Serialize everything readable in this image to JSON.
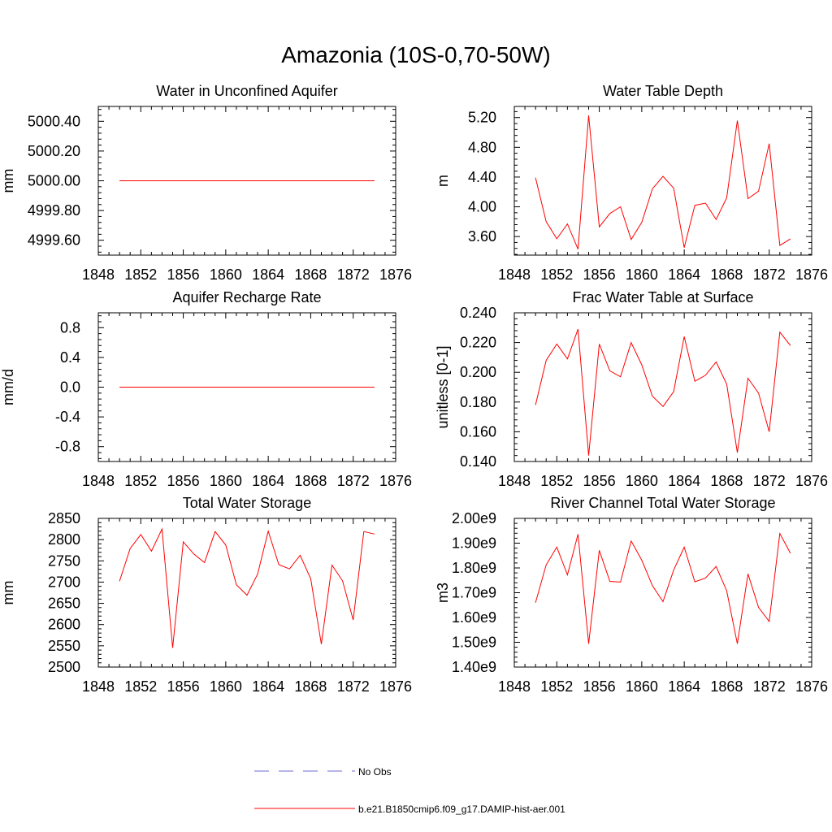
{
  "page_title": "Amazonia (10S-0,70-50W)",
  "chart_data": [
    {
      "type": "line",
      "title": "Water in Unconfined Aquifer",
      "ylabel": "mm",
      "xlim": [
        1848,
        1876
      ],
      "ylim": [
        4999.5,
        5000.5
      ],
      "xticks": [
        1848,
        1852,
        1856,
        1860,
        1864,
        1868,
        1872,
        1876
      ],
      "yticks": [
        4999.6,
        4999.8,
        5000.0,
        5000.2,
        5000.4
      ],
      "ytick_labels": [
        "4999.60",
        "4999.80",
        "5000.00",
        "5000.20",
        "5000.40"
      ],
      "x": [
        1850,
        1851,
        1852,
        1853,
        1854,
        1855,
        1856,
        1857,
        1858,
        1859,
        1860,
        1861,
        1862,
        1863,
        1864,
        1865,
        1866,
        1867,
        1868,
        1869,
        1870,
        1871,
        1872,
        1873,
        1874
      ],
      "series": [
        {
          "name": "b.e21.B1850cmip6.f09_g17.DAMIP-hist-aer.001",
          "values": [
            5000,
            5000,
            5000,
            5000,
            5000,
            5000,
            5000,
            5000,
            5000,
            5000,
            5000,
            5000,
            5000,
            5000,
            5000,
            5000,
            5000,
            5000,
            5000,
            5000,
            5000,
            5000,
            5000,
            5000,
            5000
          ]
        }
      ]
    },
    {
      "type": "line",
      "title": "Water Table Depth",
      "ylabel": "m",
      "xlim": [
        1848,
        1876
      ],
      "ylim": [
        3.35,
        5.35
      ],
      "xticks": [
        1848,
        1852,
        1856,
        1860,
        1864,
        1868,
        1872,
        1876
      ],
      "yticks": [
        3.6,
        4.0,
        4.4,
        4.8,
        5.2
      ],
      "ytick_labels": [
        "3.60",
        "4.00",
        "4.40",
        "4.80",
        "5.20"
      ],
      "x": [
        1850,
        1851,
        1852,
        1853,
        1854,
        1855,
        1856,
        1857,
        1858,
        1859,
        1860,
        1861,
        1862,
        1863,
        1864,
        1865,
        1866,
        1867,
        1868,
        1869,
        1870,
        1871,
        1872,
        1873,
        1874
      ],
      "series": [
        {
          "name": "b.e21.B1850cmip6.f09_g17.DAMIP-hist-aer.001",
          "values": [
            4.39,
            3.8,
            3.57,
            3.77,
            3.43,
            5.23,
            3.73,
            3.91,
            4.0,
            3.56,
            3.79,
            4.24,
            4.41,
            4.25,
            3.45,
            4.02,
            4.05,
            3.83,
            4.12,
            5.16,
            4.11,
            4.21,
            4.85,
            3.48,
            3.57
          ]
        }
      ]
    },
    {
      "type": "line",
      "title": "Aquifer Recharge Rate",
      "ylabel": "mm/d",
      "xlim": [
        1848,
        1876
      ],
      "ylim": [
        -1.0,
        1.0
      ],
      "xticks": [
        1848,
        1852,
        1856,
        1860,
        1864,
        1868,
        1872,
        1876
      ],
      "yticks": [
        -0.8,
        -0.4,
        0.0,
        0.4,
        0.8
      ],
      "ytick_labels": [
        "-0.8",
        "-0.4",
        "0.0",
        "0.4",
        "0.8"
      ],
      "x": [
        1850,
        1851,
        1852,
        1853,
        1854,
        1855,
        1856,
        1857,
        1858,
        1859,
        1860,
        1861,
        1862,
        1863,
        1864,
        1865,
        1866,
        1867,
        1868,
        1869,
        1870,
        1871,
        1872,
        1873,
        1874
      ],
      "series": [
        {
          "name": "b.e21.B1850cmip6.f09_g17.DAMIP-hist-aer.001",
          "values": [
            0,
            0,
            0,
            0,
            0,
            0,
            0,
            0,
            0,
            0,
            0,
            0,
            0,
            0,
            0,
            0,
            0,
            0,
            0,
            0,
            0,
            0,
            0,
            0,
            0
          ]
        }
      ]
    },
    {
      "type": "line",
      "title": "Frac Water Table at Surface",
      "ylabel": "unitless [0-1]",
      "xlim": [
        1848,
        1876
      ],
      "ylim": [
        0.14,
        0.24
      ],
      "xticks": [
        1848,
        1852,
        1856,
        1860,
        1864,
        1868,
        1872,
        1876
      ],
      "yticks": [
        0.14,
        0.16,
        0.18,
        0.2,
        0.22,
        0.24
      ],
      "ytick_labels": [
        "0.140",
        "0.160",
        "0.180",
        "0.200",
        "0.220",
        "0.240"
      ],
      "x": [
        1850,
        1851,
        1852,
        1853,
        1854,
        1855,
        1856,
        1857,
        1858,
        1859,
        1860,
        1861,
        1862,
        1863,
        1864,
        1865,
        1866,
        1867,
        1868,
        1869,
        1870,
        1871,
        1872,
        1873,
        1874
      ],
      "series": [
        {
          "name": "b.e21.B1850cmip6.f09_g17.DAMIP-hist-aer.001",
          "values": [
            0.178,
            0.208,
            0.219,
            0.209,
            0.229,
            0.144,
            0.219,
            0.201,
            0.197,
            0.22,
            0.205,
            0.184,
            0.177,
            0.187,
            0.224,
            0.194,
            0.198,
            0.207,
            0.192,
            0.146,
            0.196,
            0.186,
            0.16,
            0.227,
            0.218
          ]
        }
      ]
    },
    {
      "type": "line",
      "title": "Total Water Storage",
      "ylabel": "mm",
      "xlim": [
        1848,
        1876
      ],
      "ylim": [
        2500,
        2850
      ],
      "xticks": [
        1848,
        1852,
        1856,
        1860,
        1864,
        1868,
        1872,
        1876
      ],
      "yticks": [
        2500,
        2550,
        2600,
        2650,
        2700,
        2750,
        2800,
        2850
      ],
      "ytick_labels": [
        "2500",
        "2550",
        "2600",
        "2650",
        "2700",
        "2750",
        "2800",
        "2850"
      ],
      "x": [
        1850,
        1851,
        1852,
        1853,
        1854,
        1855,
        1856,
        1857,
        1858,
        1859,
        1860,
        1861,
        1862,
        1863,
        1864,
        1865,
        1866,
        1867,
        1868,
        1869,
        1870,
        1871,
        1872,
        1873,
        1874
      ],
      "series": [
        {
          "name": "b.e21.B1850cmip6.f09_g17.DAMIP-hist-aer.001",
          "values": [
            2702,
            2779,
            2812,
            2773,
            2825,
            2545,
            2795,
            2766,
            2746,
            2819,
            2787,
            2694,
            2669,
            2719,
            2820,
            2741,
            2731,
            2763,
            2708,
            2554,
            2740,
            2703,
            2611,
            2819,
            2813
          ]
        }
      ]
    },
    {
      "type": "line",
      "title": "River Channel Total Water Storage",
      "ylabel": "m3",
      "xlim": [
        1848,
        1876
      ],
      "ylim": [
        1400000000.0,
        2000000000.0
      ],
      "xticks": [
        1848,
        1852,
        1856,
        1860,
        1864,
        1868,
        1872,
        1876
      ],
      "yticks": [
        1400000000.0,
        1500000000.0,
        1600000000.0,
        1700000000.0,
        1800000000.0,
        1900000000.0,
        2000000000.0
      ],
      "ytick_labels": [
        "1.40e9",
        "1.50e9",
        "1.60e9",
        "1.70e9",
        "1.80e9",
        "1.90e9",
        "2.00e9"
      ],
      "x": [
        1850,
        1851,
        1852,
        1853,
        1854,
        1855,
        1856,
        1857,
        1858,
        1859,
        1860,
        1861,
        1862,
        1863,
        1864,
        1865,
        1866,
        1867,
        1868,
        1869,
        1870,
        1871,
        1872,
        1873,
        1874
      ],
      "series": [
        {
          "name": "b.e21.B1850cmip6.f09_g17.DAMIP-hist-aer.001",
          "values": [
            1660000000.0,
            1812000000.0,
            1884000000.0,
            1772000000.0,
            1936000000.0,
            1494000000.0,
            1871000000.0,
            1746000000.0,
            1743000000.0,
            1909000000.0,
            1831000000.0,
            1729000000.0,
            1664000000.0,
            1791000000.0,
            1884000000.0,
            1744000000.0,
            1759000000.0,
            1806000000.0,
            1708000000.0,
            1494000000.0,
            1776000000.0,
            1641000000.0,
            1584000000.0,
            1939000000.0,
            1859000000.0
          ]
        }
      ]
    }
  ],
  "legend": {
    "items": [
      {
        "label": "No Obs",
        "color": "#6b6bd6",
        "dash": "dashed"
      },
      {
        "label": "b.e21.B1850cmip6.f09_g17.DAMIP-hist-aer.001",
        "color": "#ff0000",
        "dash": "solid"
      }
    ]
  },
  "colors": {
    "series": "#ff0000",
    "axis": "#000000"
  }
}
